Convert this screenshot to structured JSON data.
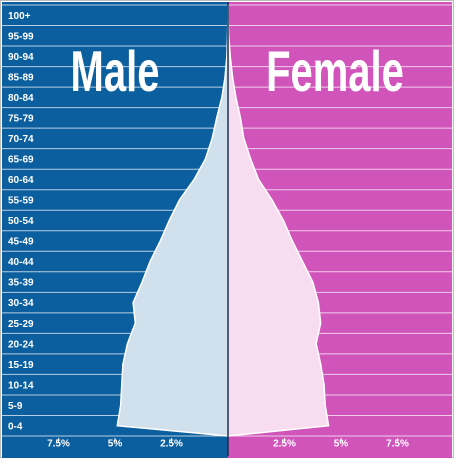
{
  "chart_data": {
    "type": "pyramid",
    "categories": [
      "0-4",
      "5-9",
      "10-14",
      "15-19",
      "20-24",
      "25-29",
      "30-34",
      "35-39",
      "40-44",
      "45-49",
      "50-54",
      "55-59",
      "60-64",
      "65-69",
      "70-74",
      "75-79",
      "80-84",
      "85-89",
      "90-94",
      "95-99",
      "100+"
    ],
    "series": [
      {
        "name": "Male",
        "side": "left",
        "color": "#d0e0ec",
        "panel_color": "#0b5f9f",
        "values": [
          4.9,
          4.75,
          4.7,
          4.65,
          4.45,
          4.1,
          4.2,
          3.8,
          3.45,
          3.0,
          2.6,
          2.15,
          1.5,
          1.0,
          0.7,
          0.5,
          0.27,
          0.13,
          0.05,
          0.02,
          0
        ]
      },
      {
        "name": "Female",
        "side": "right",
        "color": "#f8dcef",
        "panel_color": "#d154bb",
        "values": [
          4.45,
          4.3,
          4.25,
          4.1,
          3.9,
          4.1,
          4.0,
          3.75,
          3.3,
          2.85,
          2.45,
          1.95,
          1.35,
          1.0,
          0.7,
          0.55,
          0.35,
          0.2,
          0.1,
          0.03,
          0
        ]
      }
    ],
    "xlim": [
      -10,
      10
    ],
    "xticks": [
      {
        "value": -7.5,
        "label": "7.5%"
      },
      {
        "value": -5,
        "label": "5%"
      },
      {
        "value": -2.5,
        "label": "2.5%"
      },
      {
        "value": 2.5,
        "label": "2.5%"
      },
      {
        "value": 5,
        "label": "5%"
      },
      {
        "value": 7.5,
        "label": "7.5%"
      }
    ]
  }
}
